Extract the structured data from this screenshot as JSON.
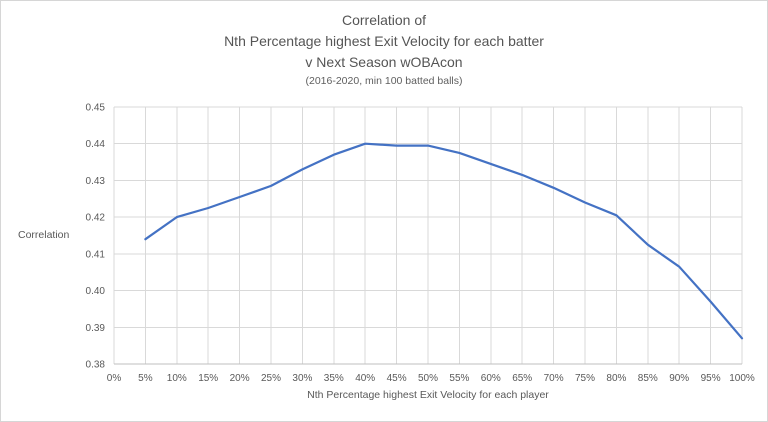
{
  "title": {
    "line1": "Correlation of",
    "line2": "Nth Percentage highest Exit Velocity for each batter",
    "line3": "v Next Season wOBAcon",
    "subtitle": "(2016-2020, min 100 batted balls)"
  },
  "chart_data": {
    "type": "line",
    "title": "Correlation of Nth Percentage highest Exit Velocity for each batter v Next Season wOBAcon (2016-2020, min 100 batted balls)",
    "xlabel": "Nth Percentage highest Exit Velocity for each player",
    "ylabel": "Correlation",
    "x_tick_labels": [
      "0%",
      "5%",
      "10%",
      "15%",
      "20%",
      "25%",
      "30%",
      "35%",
      "40%",
      "45%",
      "50%",
      "55%",
      "60%",
      "65%",
      "70%",
      "75%",
      "80%",
      "85%",
      "90%",
      "95%",
      "100%"
    ],
    "x": [
      5,
      10,
      15,
      20,
      25,
      30,
      35,
      40,
      45,
      50,
      55,
      60,
      65,
      70,
      75,
      80,
      85,
      90,
      95,
      100
    ],
    "values": [
      0.414,
      0.42,
      0.4225,
      0.4255,
      0.4285,
      0.433,
      0.437,
      0.44,
      0.4395,
      0.4395,
      0.4375,
      0.4345,
      0.4315,
      0.428,
      0.424,
      0.4205,
      0.4125,
      0.4065,
      0.397,
      0.387
    ],
    "ylim": [
      0.38,
      0.45
    ],
    "y_tick_step": 0.01,
    "y_tick_format_decimals": 2,
    "grid": true,
    "legend": false,
    "colors": {
      "line": "#4472C4",
      "gridline": "#D9D9D9",
      "axis": "#BFBFBF",
      "text": "#595959"
    }
  }
}
